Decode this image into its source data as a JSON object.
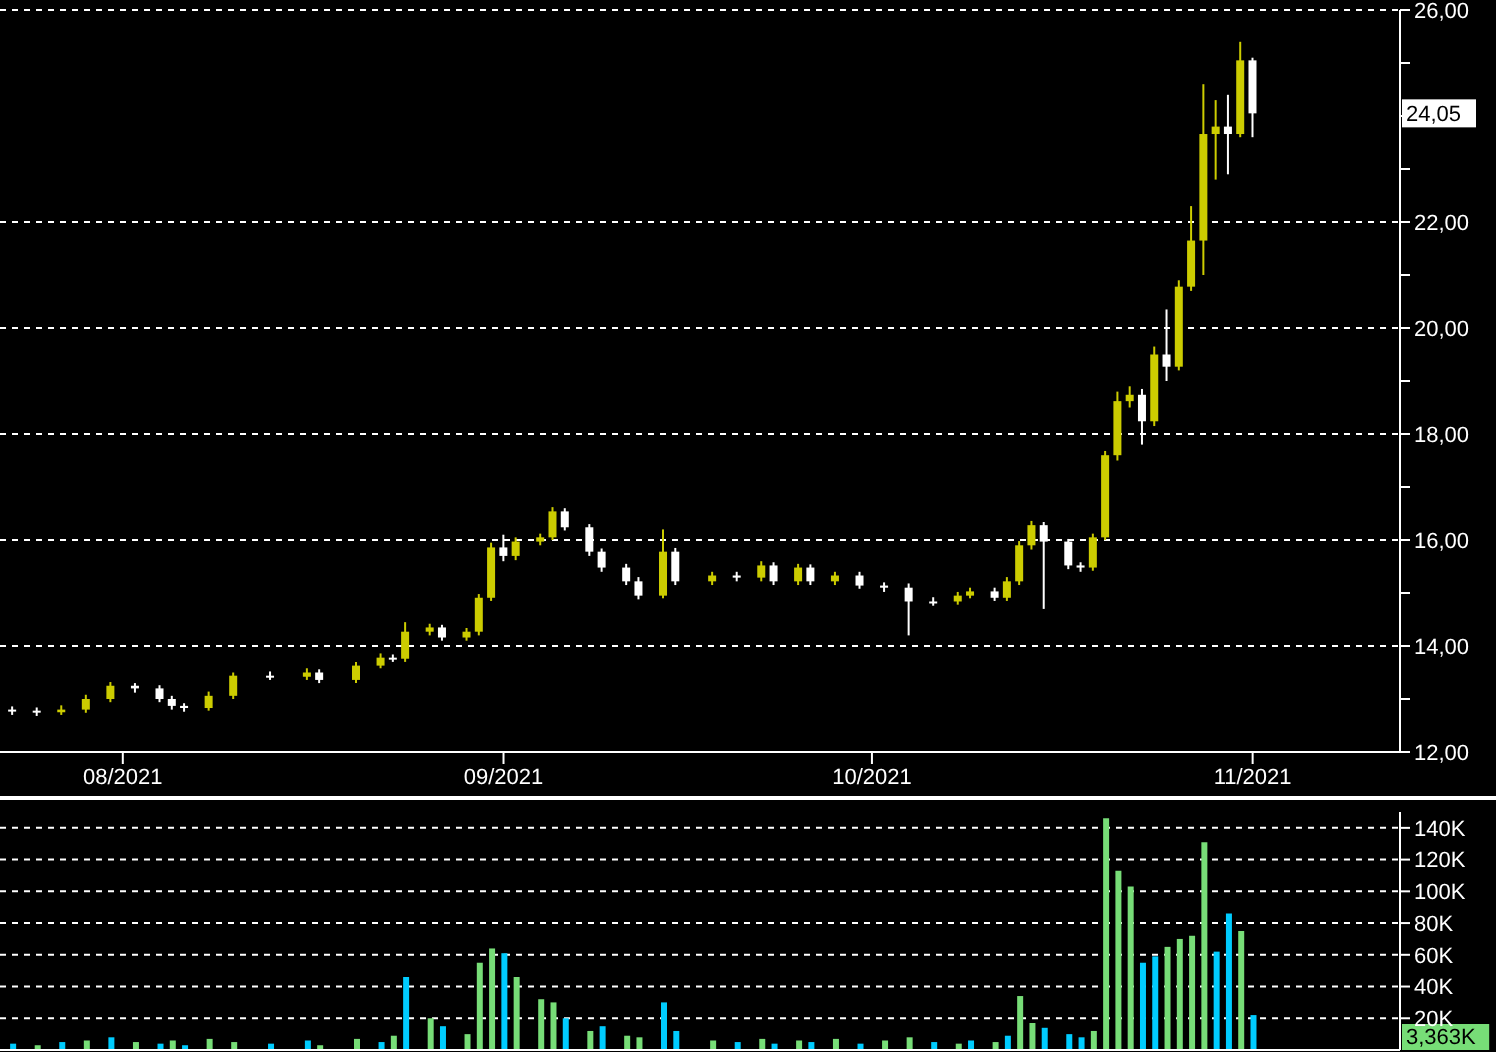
{
  "chart_data": [
    {
      "type": "candlestick",
      "x": [
        "2021-07-23",
        "2021-07-25",
        "2021-07-27",
        "2021-07-29",
        "2021-07-31",
        "2021-08-02",
        "2021-08-04",
        "2021-08-05",
        "2021-08-06",
        "2021-08-08",
        "2021-08-10",
        "2021-08-13",
        "2021-08-16",
        "2021-08-17",
        "2021-08-20",
        "2021-08-22",
        "2021-08-23",
        "2021-08-24",
        "2021-08-26",
        "2021-08-27",
        "2021-08-29",
        "2021-08-30",
        "2021-08-31",
        "2021-09-01",
        "2021-09-02",
        "2021-09-04",
        "2021-09-05",
        "2021-09-06",
        "2021-09-08",
        "2021-09-09",
        "2021-09-11",
        "2021-09-12",
        "2021-09-14",
        "2021-09-15",
        "2021-09-18",
        "2021-09-20",
        "2021-09-22",
        "2021-09-23",
        "2021-09-25",
        "2021-09-26",
        "2021-09-28",
        "2021-09-30",
        "2021-10-02",
        "2021-10-04",
        "2021-10-06",
        "2021-10-08",
        "2021-10-09",
        "2021-10-11",
        "2021-10-12",
        "2021-10-13",
        "2021-10-14",
        "2021-10-15",
        "2021-10-17",
        "2021-10-18",
        "2021-10-19",
        "2021-10-20",
        "2021-10-21",
        "2021-10-22",
        "2021-10-23",
        "2021-10-24",
        "2021-10-25",
        "2021-10-26",
        "2021-10-27",
        "2021-10-28",
        "2021-10-29",
        "2021-10-30",
        "2021-10-31",
        "2021-11-01"
      ],
      "ohlc": [
        [
          12.8,
          12.86,
          12.7,
          12.78
        ],
        [
          12.78,
          12.84,
          12.68,
          12.75
        ],
        [
          12.75,
          12.88,
          12.7,
          12.8
        ],
        [
          12.8,
          13.08,
          12.74,
          13.0
        ],
        [
          13.0,
          13.32,
          12.94,
          13.25
        ],
        [
          13.25,
          13.3,
          13.12,
          13.2
        ],
        [
          13.2,
          13.26,
          12.94,
          13.0
        ],
        [
          13.0,
          13.06,
          12.8,
          12.87
        ],
        [
          12.87,
          12.92,
          12.76,
          12.83
        ],
        [
          12.83,
          13.14,
          12.78,
          13.06
        ],
        [
          13.06,
          13.5,
          13.0,
          13.44
        ],
        [
          13.44,
          13.52,
          13.36,
          13.42
        ],
        [
          13.42,
          13.58,
          13.36,
          13.5
        ],
        [
          13.5,
          13.56,
          13.3,
          13.36
        ],
        [
          13.36,
          13.7,
          13.3,
          13.63
        ],
        [
          13.63,
          13.86,
          13.58,
          13.78
        ],
        [
          13.78,
          13.84,
          13.7,
          13.76
        ],
        [
          13.76,
          14.45,
          13.7,
          14.27
        ],
        [
          14.27,
          14.42,
          14.2,
          14.35
        ],
        [
          14.35,
          14.4,
          14.1,
          14.16
        ],
        [
          14.16,
          14.34,
          14.1,
          14.27
        ],
        [
          14.27,
          14.98,
          14.2,
          14.91
        ],
        [
          14.91,
          15.95,
          14.85,
          15.86
        ],
        [
          15.86,
          16.1,
          15.6,
          15.7
        ],
        [
          15.7,
          16.05,
          15.62,
          15.97
        ],
        [
          15.97,
          16.12,
          15.9,
          16.05
        ],
        [
          16.05,
          16.62,
          16.0,
          16.54
        ],
        [
          16.54,
          16.6,
          16.18,
          16.24
        ],
        [
          16.24,
          16.3,
          15.7,
          15.78
        ],
        [
          15.78,
          15.84,
          15.4,
          15.48
        ],
        [
          15.48,
          15.55,
          15.15,
          15.22
        ],
        [
          15.22,
          15.3,
          14.88,
          14.95
        ],
        [
          14.95,
          16.2,
          14.9,
          15.78
        ],
        [
          15.78,
          15.85,
          15.15,
          15.22
        ],
        [
          15.22,
          15.4,
          15.15,
          15.33
        ],
        [
          15.33,
          15.4,
          15.22,
          15.29
        ],
        [
          15.29,
          15.6,
          15.22,
          15.52
        ],
        [
          15.52,
          15.58,
          15.15,
          15.22
        ],
        [
          15.22,
          15.55,
          15.15,
          15.48
        ],
        [
          15.48,
          15.54,
          15.15,
          15.22
        ],
        [
          15.22,
          15.4,
          15.15,
          15.33
        ],
        [
          15.33,
          15.4,
          15.08,
          15.14
        ],
        [
          15.14,
          15.2,
          15.02,
          15.1
        ],
        [
          15.1,
          15.18,
          14.2,
          14.84
        ],
        [
          14.84,
          14.92,
          14.76,
          14.84
        ],
        [
          14.84,
          15.02,
          14.78,
          14.95
        ],
        [
          14.95,
          15.1,
          14.9,
          15.03
        ],
        [
          15.03,
          15.1,
          14.85,
          14.91
        ],
        [
          14.91,
          15.3,
          14.85,
          15.22
        ],
        [
          15.22,
          15.98,
          15.15,
          15.9
        ],
        [
          15.9,
          16.36,
          15.82,
          16.28
        ],
        [
          16.28,
          16.34,
          14.7,
          15.97
        ],
        [
          15.97,
          16.02,
          15.45,
          15.52
        ],
        [
          15.52,
          15.58,
          15.4,
          15.48
        ],
        [
          15.48,
          16.12,
          15.42,
          16.05
        ],
        [
          16.05,
          17.68,
          16.0,
          17.6
        ],
        [
          17.6,
          18.8,
          17.5,
          18.62
        ],
        [
          18.62,
          18.9,
          18.5,
          18.74
        ],
        [
          18.74,
          18.85,
          17.8,
          18.24
        ],
        [
          18.24,
          19.65,
          18.15,
          19.5
        ],
        [
          19.5,
          20.35,
          19.0,
          19.27
        ],
        [
          19.27,
          20.9,
          19.2,
          20.78
        ],
        [
          20.78,
          22.3,
          20.7,
          21.65
        ],
        [
          21.65,
          24.6,
          21.0,
          23.66
        ],
        [
          23.66,
          24.3,
          22.8,
          23.8
        ],
        [
          23.8,
          24.4,
          22.9,
          23.66
        ],
        [
          23.66,
          25.4,
          23.6,
          25.05
        ],
        [
          25.05,
          25.1,
          23.6,
          24.05
        ]
      ],
      "colors": [
        "#ffffff",
        "#ffffff",
        "#cccc00",
        "#cccc00",
        "#cccc00",
        "#ffffff",
        "#ffffff",
        "#ffffff",
        "#ffffff",
        "#cccc00",
        "#cccc00",
        "#ffffff",
        "#cccc00",
        "#ffffff",
        "#cccc00",
        "#cccc00",
        "#ffffff",
        "#cccc00",
        "#cccc00",
        "#ffffff",
        "#cccc00",
        "#cccc00",
        "#cccc00",
        "#ffffff",
        "#cccc00",
        "#cccc00",
        "#cccc00",
        "#ffffff",
        "#ffffff",
        "#ffffff",
        "#ffffff",
        "#ffffff",
        "#cccc00",
        "#ffffff",
        "#cccc00",
        "#ffffff",
        "#cccc00",
        "#ffffff",
        "#cccc00",
        "#ffffff",
        "#cccc00",
        "#ffffff",
        "#ffffff",
        "#ffffff",
        "#ffffff",
        "#cccc00",
        "#cccc00",
        "#ffffff",
        "#cccc00",
        "#cccc00",
        "#cccc00",
        "#ffffff",
        "#ffffff",
        "#ffffff",
        "#cccc00",
        "#cccc00",
        "#cccc00",
        "#cccc00",
        "#ffffff",
        "#cccc00",
        "#ffffff",
        "#cccc00",
        "#cccc00",
        "#cccc00",
        "#cccc00",
        "#ffffff",
        "#cccc00",
        "#ffffff"
      ],
      "xlim": [
        "2021-07-22",
        "2021-11-13"
      ],
      "xticks": [
        {
          "value": "2021-08",
          "label": "08/2021"
        },
        {
          "value": "2021-09",
          "label": "09/2021"
        },
        {
          "value": "2021-10",
          "label": "10/2021"
        },
        {
          "value": "2021-11",
          "label": "11/2021"
        }
      ],
      "ylim": [
        12,
        26
      ],
      "yticks": [
        {
          "value": 12,
          "label": "12,00"
        },
        {
          "value": 13,
          "label": null
        },
        {
          "value": 14,
          "label": "14,00"
        },
        {
          "value": 15,
          "label": null
        },
        {
          "value": 16,
          "label": "16,00"
        },
        {
          "value": 17,
          "label": null
        },
        {
          "value": 18,
          "label": "18,00"
        },
        {
          "value": 19,
          "label": null
        },
        {
          "value": 20,
          "label": "20,00"
        },
        {
          "value": 21,
          "label": null
        },
        {
          "value": 22,
          "label": "22,00"
        },
        {
          "value": 23,
          "label": null
        },
        {
          "value": 24,
          "label": null
        },
        {
          "value": 25,
          "label": null
        },
        {
          "value": 26,
          "label": "26,00"
        }
      ],
      "grid": "y",
      "annotations": [
        "24,05"
      ]
    },
    {
      "type": "bar",
      "x": [
        "2021-07-23",
        "2021-07-25",
        "2021-07-27",
        "2021-07-29",
        "2021-07-31",
        "2021-08-02",
        "2021-08-04",
        "2021-08-05",
        "2021-08-06",
        "2021-08-08",
        "2021-08-10",
        "2021-08-13",
        "2021-08-16",
        "2021-08-17",
        "2021-08-20",
        "2021-08-22",
        "2021-08-23",
        "2021-08-24",
        "2021-08-26",
        "2021-08-27",
        "2021-08-29",
        "2021-08-30",
        "2021-08-31",
        "2021-09-01",
        "2021-09-02",
        "2021-09-04",
        "2021-09-05",
        "2021-09-06",
        "2021-09-08",
        "2021-09-09",
        "2021-09-11",
        "2021-09-12",
        "2021-09-14",
        "2021-09-15",
        "2021-09-18",
        "2021-09-20",
        "2021-09-22",
        "2021-09-23",
        "2021-09-25",
        "2021-09-26",
        "2021-09-28",
        "2021-09-30",
        "2021-10-02",
        "2021-10-04",
        "2021-10-06",
        "2021-10-08",
        "2021-10-09",
        "2021-10-11",
        "2021-10-12",
        "2021-10-13",
        "2021-10-14",
        "2021-10-15",
        "2021-10-17",
        "2021-10-18",
        "2021-10-19",
        "2021-10-20",
        "2021-10-21",
        "2021-10-22",
        "2021-10-23",
        "2021-10-24",
        "2021-10-25",
        "2021-10-26",
        "2021-10-27",
        "2021-10-28",
        "2021-10-29",
        "2021-10-30",
        "2021-10-31",
        "2021-11-01"
      ],
      "values": [
        4000,
        3000,
        5000,
        6000,
        8000,
        5000,
        4000,
        6000,
        3000,
        7000,
        5000,
        4000,
        6000,
        3000,
        7000,
        5000,
        9000,
        46000,
        20000,
        15000,
        10000,
        55000,
        64000,
        61000,
        46000,
        32000,
        30000,
        20000,
        12000,
        15000,
        9000,
        8000,
        30000,
        12000,
        6000,
        5000,
        7000,
        4000,
        6000,
        5000,
        7000,
        4000,
        6000,
        8000,
        5000,
        4000,
        6000,
        5000,
        9000,
        34000,
        17000,
        14000,
        10000,
        8000,
        12000,
        146000,
        113000,
        103000,
        55000,
        59000,
        65000,
        70000,
        72000,
        131000,
        62000,
        86000,
        75000,
        22000
      ],
      "colors": [
        "#00ccff",
        "#77dd77",
        "#00ccff",
        "#77dd77",
        "#00ccff",
        "#77dd77",
        "#00ccff",
        "#77dd77",
        "#00ccff",
        "#77dd77",
        "#77dd77",
        "#00ccff",
        "#00ccff",
        "#77dd77",
        "#77dd77",
        "#00ccff",
        "#77dd77",
        "#00ccff",
        "#77dd77",
        "#00ccff",
        "#77dd77",
        "#77dd77",
        "#77dd77",
        "#00ccff",
        "#77dd77",
        "#77dd77",
        "#77dd77",
        "#00ccff",
        "#77dd77",
        "#00ccff",
        "#77dd77",
        "#77dd77",
        "#00ccff",
        "#00ccff",
        "#77dd77",
        "#00ccff",
        "#77dd77",
        "#00ccff",
        "#77dd77",
        "#00ccff",
        "#77dd77",
        "#00ccff",
        "#77dd77",
        "#77dd77",
        "#00ccff",
        "#77dd77",
        "#00ccff",
        "#77dd77",
        "#00ccff",
        "#77dd77",
        "#77dd77",
        "#00ccff",
        "#00ccff",
        "#00ccff",
        "#77dd77",
        "#77dd77",
        "#77dd77",
        "#77dd77",
        "#00ccff",
        "#00ccff",
        "#77dd77",
        "#77dd77",
        "#77dd77",
        "#77dd77",
        "#00ccff",
        "#00ccff",
        "#77dd77",
        "#00ccff"
      ],
      "xlim": [
        "2021-07-22",
        "2021-11-13"
      ],
      "ylim": [
        0,
        150000
      ],
      "yticks": [
        {
          "value": 20000,
          "label": "20K"
        },
        {
          "value": 40000,
          "label": "40K"
        },
        {
          "value": 60000,
          "label": "60K"
        },
        {
          "value": 80000,
          "label": "80K"
        },
        {
          "value": 100000,
          "label": "100K"
        },
        {
          "value": 120000,
          "label": "120K"
        },
        {
          "value": 140000,
          "label": "140K"
        }
      ],
      "grid": "y",
      "tick_labels": "y",
      "annotations": [
        "3,363K"
      ]
    }
  ]
}
